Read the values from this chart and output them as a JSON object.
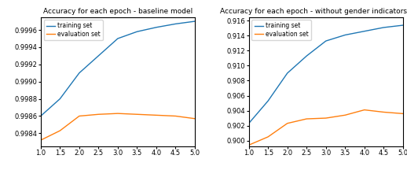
{
  "left_title": "Accuracy for each epoch - baseline model",
  "right_title": "Accuracy for each epoch - without gender indicators model",
  "epochs": [
    1.0,
    1.5,
    2.0,
    2.5,
    3.0,
    3.5,
    4.0,
    4.5,
    5.0
  ],
  "left_train": [
    0.9986,
    0.9988,
    0.9991,
    0.9993,
    0.9995,
    0.99958,
    0.99963,
    0.99967,
    0.9997
  ],
  "left_eval": [
    0.99832,
    0.99843,
    0.9986,
    0.99862,
    0.99863,
    0.99862,
    0.99861,
    0.9986,
    0.99857
  ],
  "right_train": [
    0.9023,
    0.9053,
    0.909,
    0.9113,
    0.9133,
    0.9141,
    0.9146,
    0.9151,
    0.9154
  ],
  "right_eval": [
    0.8994,
    0.9005,
    0.9023,
    0.9029,
    0.903,
    0.9034,
    0.9041,
    0.9038,
    0.9036
  ],
  "train_color": "#1f77b4",
  "eval_color": "#ff7f0e",
  "left_ylim": [
    0.99825,
    0.99975
  ],
  "right_ylim": [
    0.89925,
    0.9165
  ],
  "left_yticks": [
    0.9984,
    0.9986,
    0.9988,
    0.999,
    0.9992,
    0.9994,
    0.9996
  ],
  "right_yticks": [
    0.9,
    0.902,
    0.904,
    0.906,
    0.908,
    0.91,
    0.912,
    0.914,
    0.916
  ],
  "xticks": [
    1.0,
    1.5,
    2.0,
    2.5,
    3.0,
    3.5,
    4.0,
    4.5,
    5.0
  ],
  "legend_train": "training set",
  "legend_eval": "evaluation set",
  "title_fontsize": 6.5,
  "tick_fontsize": 6,
  "legend_fontsize": 5.5
}
